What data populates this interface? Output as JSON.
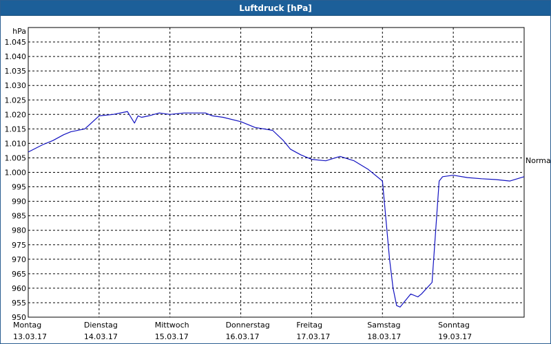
{
  "window": {
    "title": "Luftdruck [hPa]"
  },
  "colors": {
    "titlebar": "#1c5f99",
    "line": "#1010c0",
    "grid": "#000000"
  },
  "chart_data": {
    "type": "line",
    "title": "Luftdruck [hPa]",
    "ylabel": "hPa",
    "ylim": [
      950,
      1050
    ],
    "yticks": [
      {
        "value": 1045,
        "label": "1.045"
      },
      {
        "value": 1040,
        "label": "1.040"
      },
      {
        "value": 1035,
        "label": "1.035"
      },
      {
        "value": 1030,
        "label": "1.030"
      },
      {
        "value": 1025,
        "label": "1.025"
      },
      {
        "value": 1020,
        "label": "1.020"
      },
      {
        "value": 1015,
        "label": "1.015"
      },
      {
        "value": 1010,
        "label": "1.010"
      },
      {
        "value": 1005,
        "label": "1.005"
      },
      {
        "value": 1000,
        "label": "1.000"
      },
      {
        "value": 995,
        "label": "995"
      },
      {
        "value": 990,
        "label": "990"
      },
      {
        "value": 985,
        "label": "985"
      },
      {
        "value": 980,
        "label": "980"
      },
      {
        "value": 975,
        "label": "975"
      },
      {
        "value": 970,
        "label": "970"
      },
      {
        "value": 965,
        "label": "965"
      },
      {
        "value": 960,
        "label": "960"
      },
      {
        "value": 955,
        "label": "955"
      },
      {
        "value": 950,
        "label": "950"
      }
    ],
    "xlim": [
      0,
      7
    ],
    "xticks": [
      {
        "day": "Montag",
        "date": "13.03.17"
      },
      {
        "day": "Dienstag",
        "date": "14.03.17"
      },
      {
        "day": "Mittwoch",
        "date": "15.03.17"
      },
      {
        "day": "Donnerstag",
        "date": "16.03.17"
      },
      {
        "day": "Freitag",
        "date": "17.03.17"
      },
      {
        "day": "Samstag",
        "date": "18.03.17"
      },
      {
        "day": "Sonntag",
        "date": "19.03.17"
      }
    ],
    "reference_line": {
      "label": "Normal",
      "value": 1004.2
    },
    "grid": true,
    "series": [
      {
        "x": [
          0,
          0.2,
          0.35,
          0.5,
          0.6,
          0.8,
          1.0,
          1.2,
          1.4,
          1.45,
          1.5,
          1.55,
          1.6,
          1.7,
          1.85,
          2.0,
          2.2,
          2.5,
          2.6,
          2.75,
          3.0,
          3.2,
          3.45,
          3.6,
          3.7,
          3.85,
          4.0,
          4.2,
          4.4,
          4.6,
          4.8,
          5.0,
          5.1,
          5.15,
          5.2,
          5.25,
          5.3,
          5.4,
          5.5,
          5.55,
          5.7,
          5.8,
          5.85,
          6.0,
          6.2,
          6.4,
          6.6,
          6.8,
          7.0
        ],
        "y": [
          1007,
          1009.5,
          1011,
          1013,
          1014,
          1015,
          1019.5,
          1020,
          1021,
          1019,
          1017,
          1019.5,
          1019,
          1019.5,
          1020.5,
          1020,
          1020.5,
          1020.5,
          1019.5,
          1019,
          1017.5,
          1015.5,
          1014.5,
          1011,
          1008,
          1006,
          1004.5,
          1004,
          1005.5,
          1004,
          1001,
          997,
          970,
          960,
          954,
          953.5,
          955,
          958,
          957,
          958,
          962,
          997,
          998.5,
          999,
          998.2,
          997.8,
          997.5,
          997,
          998.5
        ]
      }
    ]
  }
}
